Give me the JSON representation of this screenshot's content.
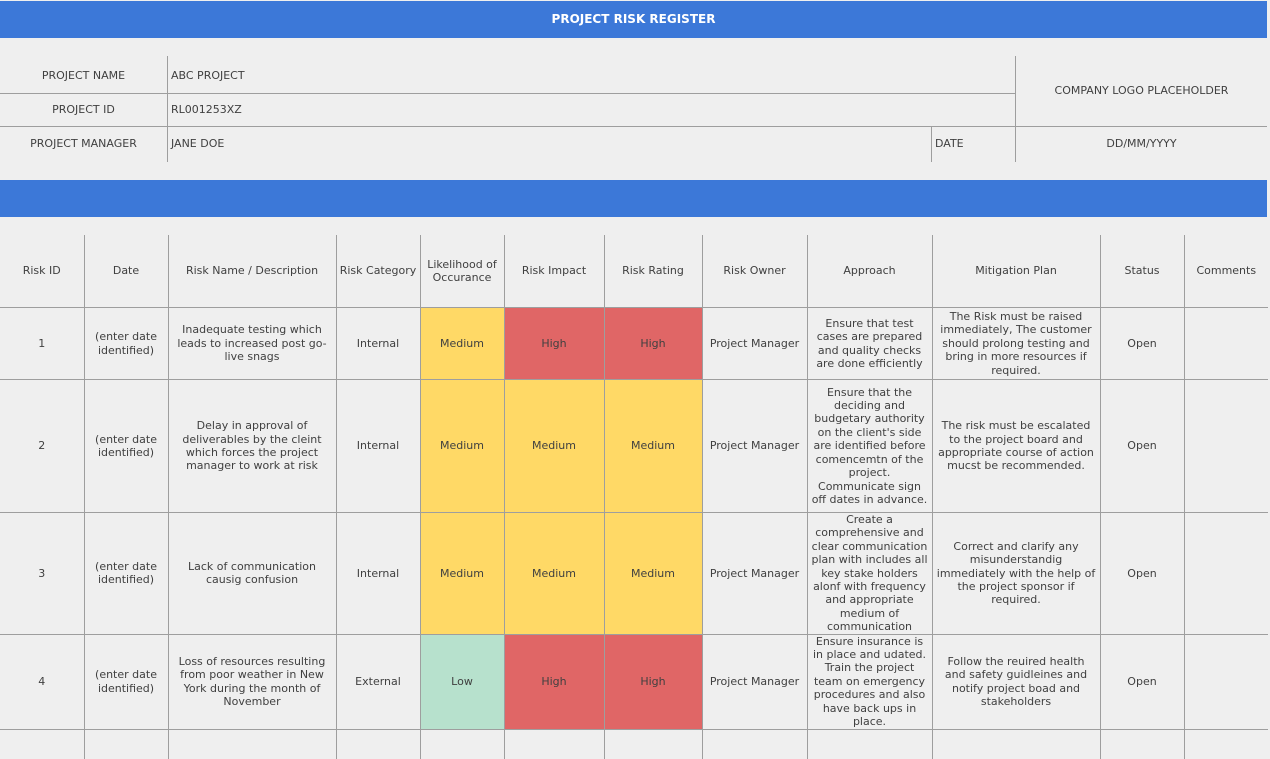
{
  "title": "PROJECT RISK REGISTER",
  "header": {
    "project_name_label": "PROJECT NAME",
    "project_name_value": "ABC PROJECT",
    "project_id_label": "PROJECT ID",
    "project_id_value": "RL001253XZ",
    "project_manager_label": "PROJECT MANAGER",
    "project_manager_value": "JANE DOE",
    "date_label": "DATE",
    "date_value": "DD/MM/YYYY",
    "logo_placeholder": "COMPANY LOGO PLACEHOLDER"
  },
  "columns": [
    "Risk ID",
    "Date",
    "Risk Name / Description",
    "Risk Category",
    "Likelihood of Occurance",
    "Risk Impact",
    "Risk Rating",
    "Risk Owner",
    "Approach",
    "Mitigation Plan",
    "Status",
    "Comments"
  ],
  "rows": [
    {
      "id": "1",
      "date": "(enter date identified)",
      "description": "Inadequate testing which leads to increased post go-live snags",
      "category": "Internal",
      "likelihood": "Medium",
      "impact": "High",
      "rating": "High",
      "owner": "Project Manager",
      "approach": "Ensure that test cases are prepared and quality checks are done efficiently",
      "mitigation": "The Risk must be raised immediately, The customer should prolong testing and bring in more resources if required.",
      "status": "Open",
      "comments": ""
    },
    {
      "id": "2",
      "date": "(enter date identified)",
      "description": "Delay in approval of deliverables by the cleint which forces the project manager to work at risk",
      "category": "Internal",
      "likelihood": "Medium",
      "impact": "Medium",
      "rating": "Medium",
      "owner": "Project Manager",
      "approach": "Ensure that the deciding and budgetary authority on the client's side are identified before comencemtn of the project. Communicate sign off dates in advance.",
      "mitigation": "The risk must be escalated to the project board and appropriate course of action mucst be recommended.",
      "status": "Open",
      "comments": ""
    },
    {
      "id": "3",
      "date": "(enter date identified)",
      "description": "Lack of communication causig confusion",
      "category": "Internal",
      "likelihood": "Medium",
      "impact": "Medium",
      "rating": "Medium",
      "owner": "Project Manager",
      "approach": "Create a comprehensive and clear communication plan with includes all key stake holders alonf with frequency and appropriate medium of communication",
      "mitigation": "Correct and clarify any misunderstandig immediately with the help of the project sponsor if required.",
      "status": "Open",
      "comments": ""
    },
    {
      "id": "4",
      "date": "(enter date identified)",
      "description": "Loss of resources resulting from poor weather in New York during the month of November",
      "category": "External",
      "likelihood": "Low",
      "impact": "High",
      "rating": "High",
      "owner": "Project Manager",
      "approach": "Ensure insurance is in place and udated. Train the project team on emergency procedures and also have back ups in place.",
      "mitigation": "Follow the reuired health and safety guidleines and notify project boad and stakeholders",
      "status": "Open",
      "comments": ""
    }
  ],
  "level_colors": {
    "Low": "#b7e1cd",
    "Medium": "#ffd966",
    "High": "#e06666"
  },
  "accent_color": "#3c78d8"
}
